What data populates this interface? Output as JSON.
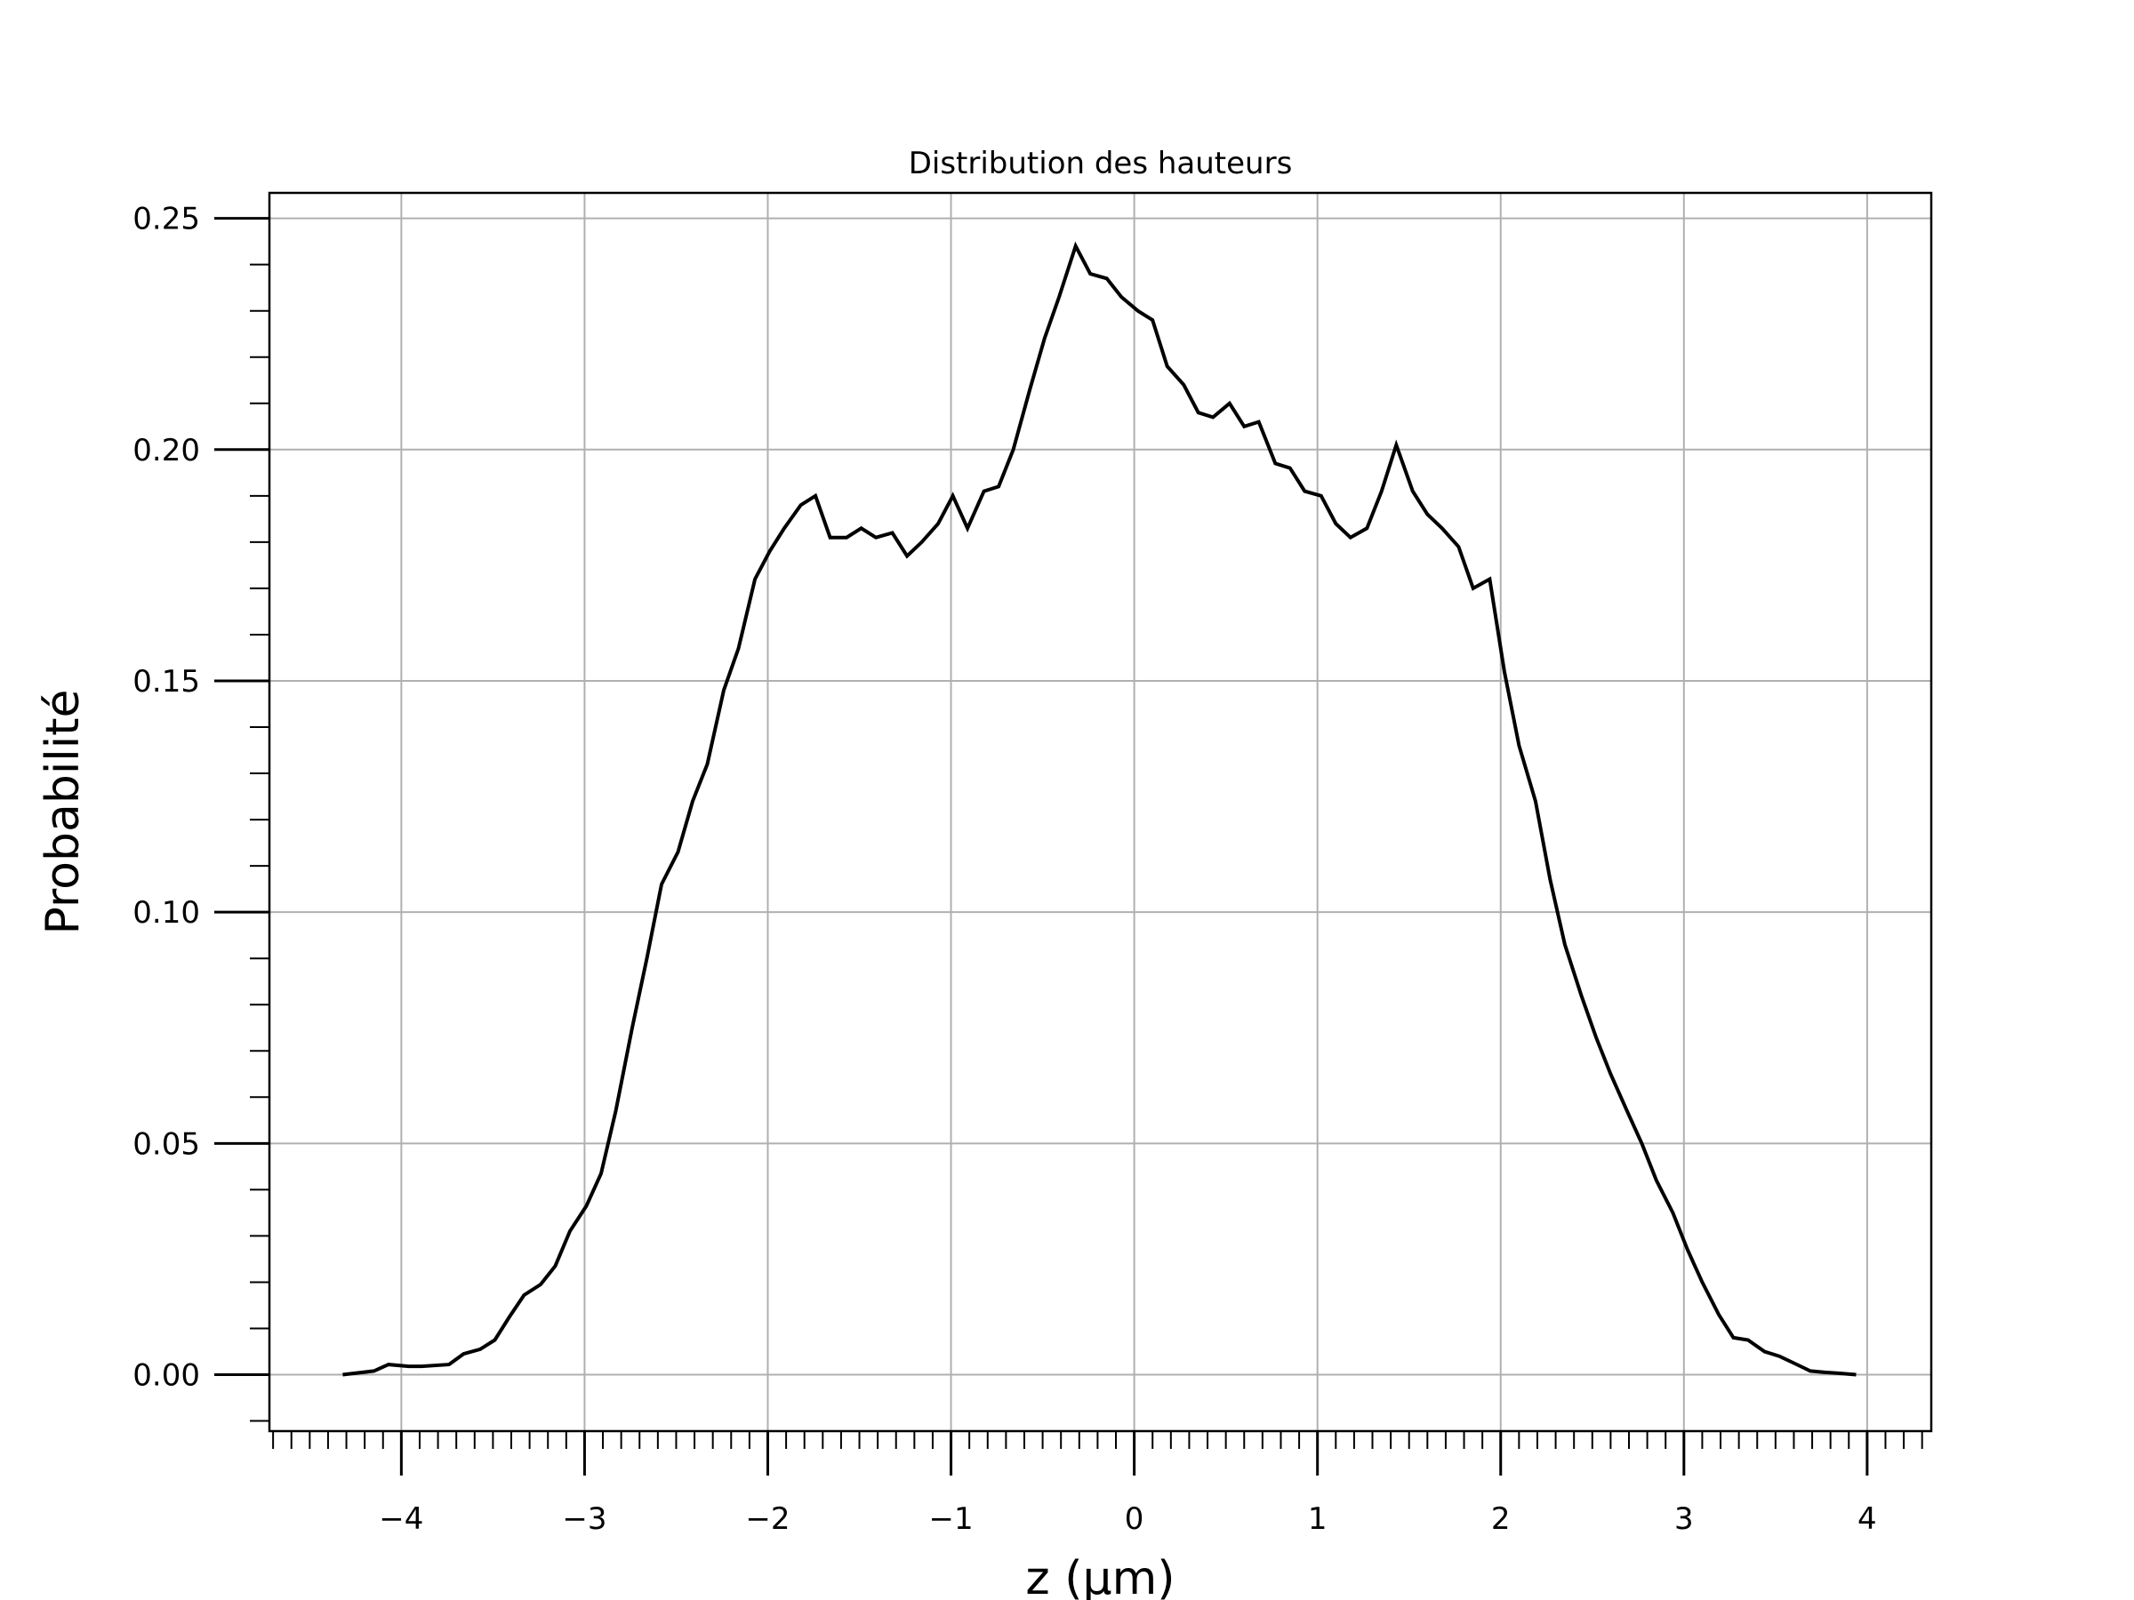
{
  "chart_data": {
    "type": "line",
    "title": "Distribution des hauteurs",
    "xlabel": "z (µm)",
    "ylabel": "Probabilité",
    "xlim": [
      -4.72,
      4.35
    ],
    "ylim": [
      -0.0122,
      0.2555
    ],
    "grid": true,
    "legend": "none",
    "line_color": "#000000",
    "grid_color": "#b0b0b0",
    "x_ticks": [
      {
        "value": -4,
        "label": "−4"
      },
      {
        "value": -3,
        "label": "−3"
      },
      {
        "value": -2,
        "label": "−2"
      },
      {
        "value": -1,
        "label": "−1"
      },
      {
        "value": 0,
        "label": "0"
      },
      {
        "value": 1,
        "label": "1"
      },
      {
        "value": 2,
        "label": "2"
      },
      {
        "value": 3,
        "label": "3"
      },
      {
        "value": 4,
        "label": "4"
      }
    ],
    "y_ticks": [
      {
        "value": 0.0,
        "label": "0.00"
      },
      {
        "value": 0.05,
        "label": "0.05"
      },
      {
        "value": 0.1,
        "label": "0.10"
      },
      {
        "value": 0.15,
        "label": "0.15"
      },
      {
        "value": 0.2,
        "label": "0.20"
      },
      {
        "value": 0.25,
        "label": "0.25"
      }
    ],
    "x_minor_step": 0.1,
    "y_minor_step": 0.01,
    "series": [
      {
        "x": [
          -4.32,
          -4.15,
          -4.07,
          -3.96,
          -3.89,
          -3.74,
          -3.66,
          -3.57,
          -3.49,
          -3.41,
          -3.33,
          -3.24,
          -3.16,
          -3.08,
          -2.99,
          -2.91,
          -2.83,
          -2.74,
          -2.66,
          -2.58,
          -2.49,
          -2.41,
          -2.33,
          -2.24,
          -2.16,
          -2.07,
          -1.99,
          -1.91,
          -1.82,
          -1.74,
          -1.66,
          -1.57,
          -1.49,
          -1.41,
          -1.32,
          -1.24,
          -1.16,
          -1.07,
          -0.99,
          -0.91,
          -0.82,
          -0.74,
          -0.66,
          -0.57,
          -0.49,
          -0.41,
          -0.32,
          -0.24,
          -0.15,
          -0.07,
          0.02,
          0.1,
          0.18,
          0.27,
          0.35,
          0.43,
          0.52,
          0.6,
          0.68,
          0.77,
          0.85,
          0.93,
          1.02,
          1.1,
          1.18,
          1.27,
          1.35,
          1.43,
          1.52,
          1.6,
          1.68,
          1.77,
          1.85,
          1.94,
          2.02,
          2.1,
          2.19,
          2.27,
          2.35,
          2.44,
          2.52,
          2.6,
          2.69,
          2.77,
          2.85,
          2.94,
          3.02,
          3.1,
          3.19,
          3.27,
          3.35,
          3.44,
          3.52,
          3.6,
          3.69,
          3.77,
          3.85,
          3.94
        ],
        "y": [
          0.0,
          0.0008,
          0.0022,
          0.0018,
          0.0018,
          0.0022,
          0.0045,
          0.0055,
          0.0075,
          0.0125,
          0.0172,
          0.0195,
          0.0235,
          0.031,
          0.0365,
          0.0435,
          0.057,
          0.075,
          0.09,
          0.106,
          0.113,
          0.124,
          0.132,
          0.148,
          0.157,
          0.172,
          0.178,
          0.183,
          0.188,
          0.19,
          0.181,
          0.181,
          0.183,
          0.181,
          0.182,
          0.177,
          0.18,
          0.184,
          0.19,
          0.183,
          0.191,
          0.192,
          0.2,
          0.213,
          0.224,
          0.233,
          0.244,
          0.238,
          0.237,
          0.233,
          0.23,
          0.228,
          0.218,
          0.214,
          0.208,
          0.207,
          0.21,
          0.205,
          0.206,
          0.197,
          0.196,
          0.191,
          0.19,
          0.184,
          0.181,
          0.183,
          0.191,
          0.201,
          0.191,
          0.186,
          0.183,
          0.179,
          0.17,
          0.172,
          0.152,
          0.136,
          0.124,
          0.107,
          0.093,
          0.082,
          0.073,
          0.065,
          0.057,
          0.05,
          0.042,
          0.035,
          0.027,
          0.02,
          0.013,
          0.008,
          0.0075,
          0.005,
          0.004,
          0.0025,
          0.0008,
          0.0005,
          0.0003,
          0.0
        ]
      }
    ]
  }
}
